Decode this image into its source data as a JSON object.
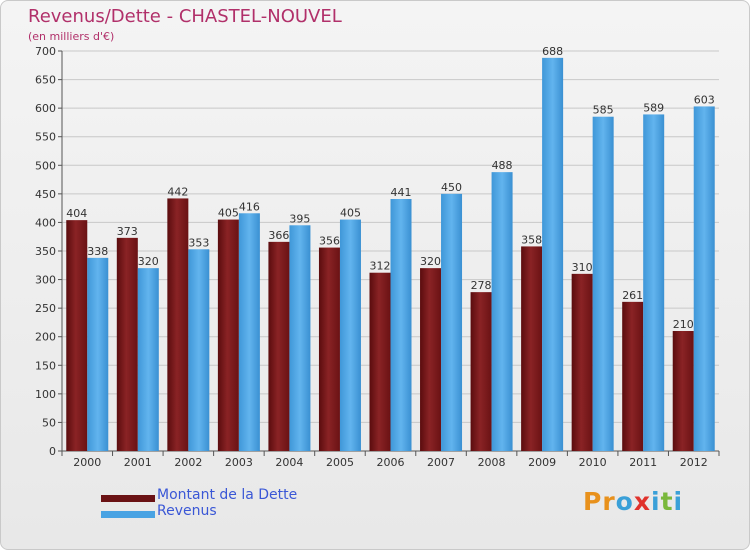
{
  "header": {
    "title": "Revenus/Dette - CHASTEL-NOUVEL",
    "subtitle": "(en milliers d'€)"
  },
  "legend": {
    "series1": "Montant de la Dette",
    "series2": "Revenus"
  },
  "logo": {
    "text": "Proxiti",
    "letters": [
      "P",
      "r",
      "o",
      "x",
      "i",
      "t",
      "i"
    ],
    "colors": [
      "#e8911c",
      "#e8911c",
      "#3aa0d8",
      "#e0322c",
      "#3aa0d8",
      "#7ab83c",
      "#3aa0d8"
    ]
  },
  "colors": {
    "debt": "#7a1618",
    "revenue": "#49a3e3",
    "grid": "#c8c8c8",
    "axis": "#555555"
  },
  "chart_data": {
    "type": "bar",
    "title": "Revenus/Dette - CHASTEL-NOUVEL",
    "ylabel": "(en milliers d'€)",
    "xlabel": "",
    "ylim": [
      0,
      700
    ],
    "yticks": [
      0,
      50,
      100,
      150,
      200,
      250,
      300,
      350,
      400,
      450,
      500,
      550,
      600,
      650,
      700
    ],
    "grid": true,
    "legend": "bottom-left",
    "categories": [
      "2000",
      "2001",
      "2002",
      "2003",
      "2004",
      "2005",
      "2006",
      "2007",
      "2008",
      "2009",
      "2010",
      "2011",
      "2012"
    ],
    "series": [
      {
        "name": "Montant de la Dette",
        "values": [
          404,
          373,
          442,
          405,
          366,
          356,
          312,
          320,
          278,
          358,
          310,
          261,
          210
        ]
      },
      {
        "name": "Revenus",
        "values": [
          338,
          320,
          353,
          416,
          395,
          405,
          441,
          450,
          488,
          688,
          585,
          589,
          603
        ]
      }
    ]
  }
}
